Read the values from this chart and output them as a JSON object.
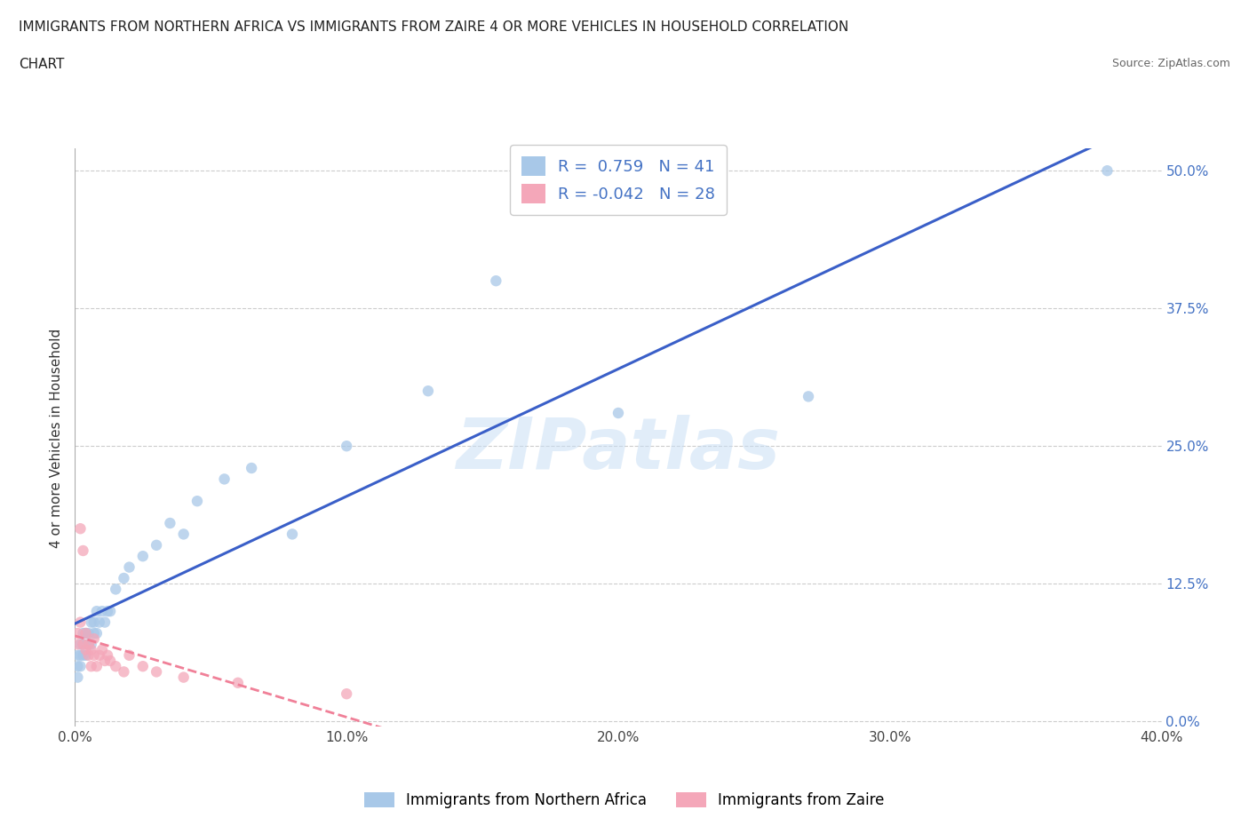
{
  "title_line1": "IMMIGRANTS FROM NORTHERN AFRICA VS IMMIGRANTS FROM ZAIRE 4 OR MORE VEHICLES IN HOUSEHOLD CORRELATION",
  "title_line2": "CHART",
  "source_text": "Source: ZipAtlas.com",
  "watermark": "ZIPatlas",
  "ylabel": "4 or more Vehicles in Household",
  "xlim": [
    0.0,
    0.4
  ],
  "ylim": [
    -0.005,
    0.52
  ],
  "xticks": [
    0.0,
    0.1,
    0.2,
    0.3,
    0.4
  ],
  "xtick_labels": [
    "0.0%",
    "10.0%",
    "20.0%",
    "30.0%",
    "40.0%"
  ],
  "yticks": [
    0.0,
    0.125,
    0.25,
    0.375,
    0.5
  ],
  "ytick_labels": [
    "0.0%",
    "12.5%",
    "25.0%",
    "37.5%",
    "50.0%"
  ],
  "R_blue": 0.759,
  "N_blue": 41,
  "R_pink": -0.042,
  "N_pink": 28,
  "blue_color": "#a8c8e8",
  "pink_color": "#f4a7b9",
  "blue_line_color": "#3a5fc8",
  "pink_line_color": "#f08098",
  "background_color": "#ffffff",
  "grid_color": "#cccccc",
  "legend_label_blue": "Immigrants from Northern Africa",
  "legend_label_pink": "Immigrants from Zaire",
  "ytick_color": "#4472c4",
  "blue_scatter_x": [
    0.001,
    0.001,
    0.001,
    0.002,
    0.002,
    0.002,
    0.003,
    0.003,
    0.003,
    0.004,
    0.004,
    0.005,
    0.005,
    0.006,
    0.006,
    0.007,
    0.007,
    0.008,
    0.008,
    0.009,
    0.01,
    0.011,
    0.012,
    0.013,
    0.015,
    0.018,
    0.02,
    0.025,
    0.03,
    0.035,
    0.04,
    0.045,
    0.055,
    0.065,
    0.08,
    0.1,
    0.13,
    0.155,
    0.2,
    0.27,
    0.38
  ],
  "blue_scatter_y": [
    0.04,
    0.05,
    0.06,
    0.05,
    0.06,
    0.07,
    0.06,
    0.07,
    0.08,
    0.06,
    0.08,
    0.07,
    0.08,
    0.07,
    0.09,
    0.08,
    0.09,
    0.08,
    0.1,
    0.09,
    0.1,
    0.09,
    0.1,
    0.1,
    0.12,
    0.13,
    0.14,
    0.15,
    0.16,
    0.18,
    0.17,
    0.2,
    0.22,
    0.23,
    0.17,
    0.25,
    0.3,
    0.4,
    0.28,
    0.295,
    0.5
  ],
  "pink_scatter_x": [
    0.001,
    0.001,
    0.002,
    0.002,
    0.003,
    0.003,
    0.004,
    0.004,
    0.005,
    0.005,
    0.006,
    0.006,
    0.007,
    0.007,
    0.008,
    0.009,
    0.01,
    0.011,
    0.012,
    0.013,
    0.015,
    0.018,
    0.02,
    0.025,
    0.03,
    0.04,
    0.06,
    0.1
  ],
  "pink_scatter_y": [
    0.07,
    0.08,
    0.175,
    0.09,
    0.155,
    0.07,
    0.065,
    0.08,
    0.06,
    0.07,
    0.05,
    0.065,
    0.06,
    0.075,
    0.05,
    0.06,
    0.065,
    0.055,
    0.06,
    0.055,
    0.05,
    0.045,
    0.06,
    0.05,
    0.045,
    0.04,
    0.035,
    0.025
  ]
}
